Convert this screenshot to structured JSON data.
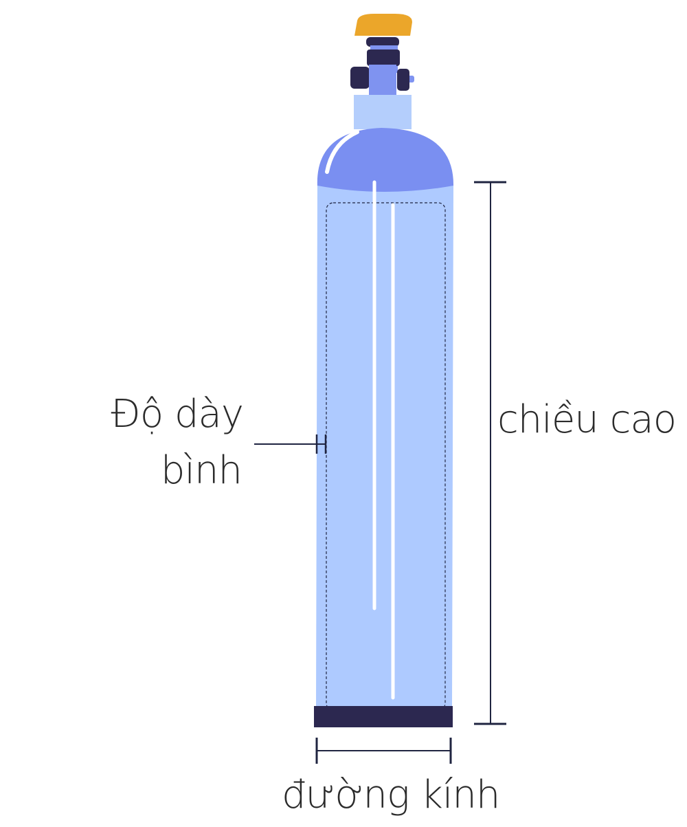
{
  "labels": {
    "wall_thickness_line1": "Độ dày",
    "wall_thickness_line2": "bình",
    "height": "chiều cao",
    "diameter": "đường kính"
  },
  "colors": {
    "cap": "#eba62a",
    "valve_dark": "#2c2850",
    "neck_blue": "#7f93f0",
    "collar": "#b4cefc",
    "shoulder": "#7a8ff1",
    "body": "#aecaff",
    "base": "#2c2850",
    "dimension_line": "#1f2440",
    "text": "#2b2b2b"
  },
  "icons": {
    "object": "gas-cylinder-icon"
  }
}
